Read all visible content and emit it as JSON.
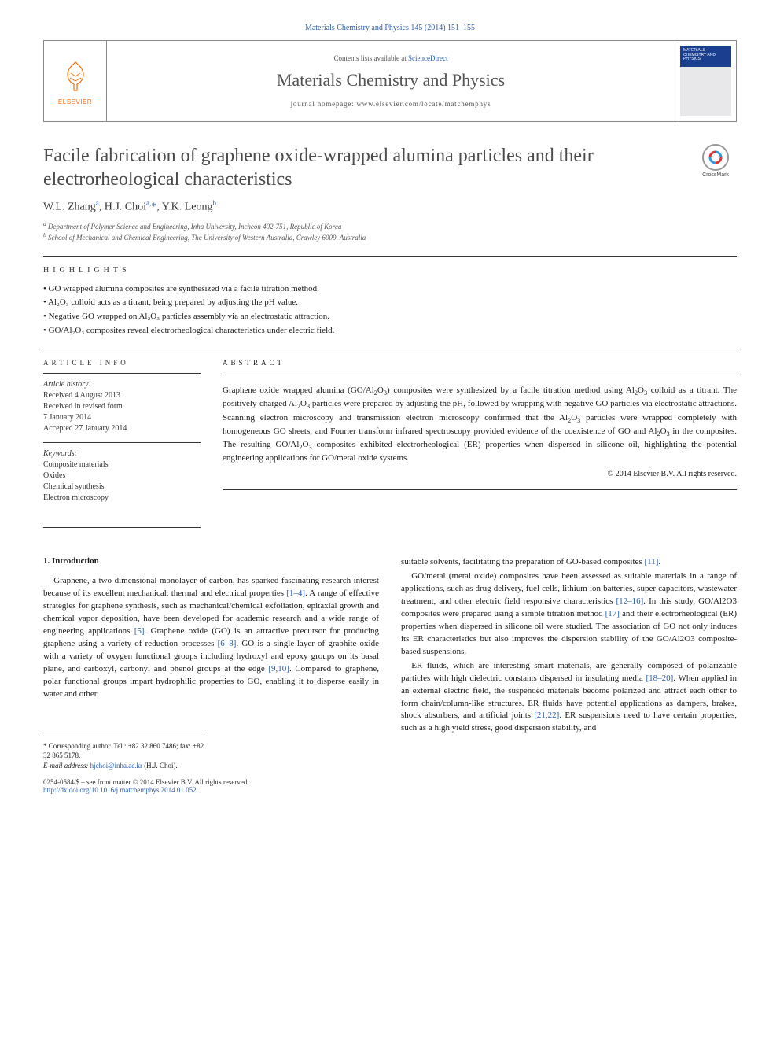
{
  "colors": {
    "link": "#2a5db0",
    "elsevier_orange": "#ff6b00",
    "text_gray": "#4a4a4a",
    "rule": "#333333"
  },
  "journal_ref": "Materials Chemistry and Physics 145 (2014) 151–155",
  "header": {
    "contents_prefix": "Contents lists available at ",
    "contents_link": "ScienceDirect",
    "journal_title": "Materials Chemistry and Physics",
    "homepage_prefix": "journal homepage: ",
    "homepage_url": "www.elsevier.com/locate/matchemphys",
    "elsevier_label": "ELSEVIER"
  },
  "crossmark_label": "CrossMark",
  "article": {
    "title": "Facile fabrication of graphene oxide-wrapped alumina particles and their electrorheological characteristics",
    "authors_html": "W.L. Zhang<sup>a</sup>, H.J. Choi<sup>a,</sup><span class='ast'>*</span>, Y.K. Leong<sup>b</sup>",
    "affiliations": [
      "a Department of Polymer Science and Engineering, Inha University, Incheon 402-751, Republic of Korea",
      "b School of Mechanical and Chemical Engineering, The University of Western Australia, Crawley 6009, Australia"
    ]
  },
  "highlights_label": "HIGHLIGHTS",
  "highlights": [
    "GO wrapped alumina composites are synthesized via a facile titration method.",
    "Al2O3 colloid acts as a titrant, being prepared by adjusting the pH value.",
    "Negative GO wrapped on Al2O3 particles assembly via an electrostatic attraction.",
    "GO/Al2O3 composites reveal electrorheological characteristics under electric field."
  ],
  "article_info_label": "ARTICLE INFO",
  "history_label": "Article history:",
  "history": [
    "Received 4 August 2013",
    "Received in revised form",
    "7 January 2014",
    "Accepted 27 January 2014"
  ],
  "keywords_label": "Keywords:",
  "keywords": [
    "Composite materials",
    "Oxides",
    "Chemical synthesis",
    "Electron microscopy"
  ],
  "abstract_label": "ABSTRACT",
  "abstract_text": "Graphene oxide wrapped alumina (GO/Al2O3) composites were synthesized by a facile titration method using Al2O3 colloid as a titrant. The positively-charged Al2O3 particles were prepared by adjusting the pH, followed by wrapping with negative GO particles via electrostatic attractions. Scanning electron microscopy and transmission electron microscopy confirmed that the Al2O3 particles were wrapped completely with homogeneous GO sheets, and Fourier transform infrared spectroscopy provided evidence of the coexistence of GO and Al2O3 in the composites. The resulting GO/Al2O3 composites exhibited electrorheological (ER) properties when dispersed in silicone oil, highlighting the potential engineering applications for GO/metal oxide systems.",
  "copyright": "© 2014 Elsevier B.V. All rights reserved.",
  "intro_heading": "1. Introduction",
  "col_left": {
    "p1_a": "Graphene, a two-dimensional monolayer of carbon, has sparked fascinating research interest because of its excellent mechanical, thermal and electrical properties ",
    "c1": "[1–4]",
    "p1_b": ". A range of effective strategies for graphene synthesis, such as mechanical/chemical exfoliation, epitaxial growth and chemical vapor deposition, have been developed for academic research and a wide range of engineering applications ",
    "c2": "[5]",
    "p1_c": ". Graphene oxide (GO) is an attractive precursor for producing graphene using a variety of reduction processes ",
    "c3": "[6–8]",
    "p1_d": ". GO is a single-layer of graphite oxide with a variety of oxygen functional groups including hydroxyl and epoxy groups on its basal plane, and carboxyl, carbonyl and phenol groups at the edge ",
    "c4": "[9,10]",
    "p1_e": ". Compared to graphene, polar functional groups impart hydrophilic properties to GO, enabling it to disperse easily in water and other"
  },
  "col_right": {
    "p1_a": "suitable solvents, facilitating the preparation of GO-based composites ",
    "c1": "[11]",
    "p1_b": ".",
    "p2_a": "GO/metal (metal oxide) composites have been assessed as suitable materials in a range of applications, such as drug delivery, fuel cells, lithium ion batteries, super capacitors, wastewater treatment, and other electric field responsive characteristics ",
    "c2": "[12–16]",
    "p2_b": ". In this study, GO/Al2O3 composites were prepared using a simple titration method ",
    "c3": "[17]",
    "p2_c": " and their electrorheological (ER) properties when dispersed in silicone oil were studied. The association of GO not only induces its ER characteristics but also improves the dispersion stability of the GO/Al2O3 composite-based suspensions.",
    "p3_a": "ER fluids, which are interesting smart materials, are generally composed of polarizable particles with high dielectric constants dispersed in insulating media ",
    "c4": "[18–20]",
    "p3_b": ". When applied in an external electric field, the suspended materials become polarized and attract each other to form chain/column-like structures. ER fluids have potential applications as dampers, brakes, shock absorbers, and artificial joints ",
    "c5": "[21,22]",
    "p3_c": ". ER suspensions need to have certain properties, such as a high yield stress, good dispersion stability, and"
  },
  "footnotes": {
    "corr": "* Corresponding author. Tel.: +82 32 860 7486; fax: +82 32 865 5178.",
    "email_label": "E-mail address: ",
    "email": "hjchoi@inha.ac.kr",
    "email_suffix": " (H.J. Choi)."
  },
  "footer": {
    "left_a": "0254-0584/$ – see front matter © 2014 Elsevier B.V. All rights reserved.",
    "doi": "http://dx.doi.org/10.1016/j.matchemphys.2014.01.052"
  }
}
